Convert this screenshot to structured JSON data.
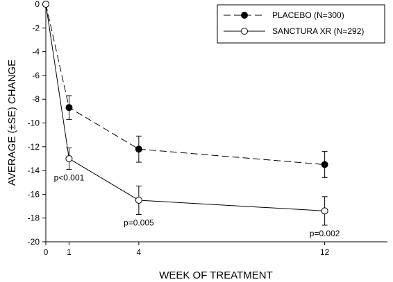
{
  "chart_data": {
    "type": "line",
    "title": "",
    "xlabel": "WEEK OF TREATMENT",
    "ylabel": "AVERAGE (±SE) CHANGE",
    "xlim": [
      0,
      14.7
    ],
    "ylim": [
      -20,
      0
    ],
    "x_ticks": [
      0,
      1,
      4,
      12
    ],
    "y_ticks": [
      0,
      -2,
      -4,
      -6,
      -8,
      -10,
      -12,
      -14,
      -16,
      -18,
      -20
    ],
    "legend_position": "top-right",
    "series": [
      {
        "name": "PLACEBO (N=300)",
        "marker": "filled-circle",
        "line_style": "dashed",
        "points": [
          {
            "x": 0,
            "y": 0,
            "se": 0
          },
          {
            "x": 1,
            "y": -8.7,
            "se": 1.0
          },
          {
            "x": 4,
            "y": -12.2,
            "se": 1.1
          },
          {
            "x": 12,
            "y": -13.5,
            "se": 1.1
          }
        ]
      },
      {
        "name": "SANCTURA XR (N=292)",
        "marker": "open-circle",
        "line_style": "solid",
        "points": [
          {
            "x": 0,
            "y": 0,
            "se": 0
          },
          {
            "x": 1,
            "y": -13.0,
            "se": 0.9
          },
          {
            "x": 4,
            "y": -16.5,
            "se": 1.2
          },
          {
            "x": 12,
            "y": -17.4,
            "se": 1.2
          }
        ]
      }
    ],
    "annotations": [
      {
        "text": "p<0.001",
        "x": 1
      },
      {
        "text": "p=0.005",
        "x": 4
      },
      {
        "text": "p=0.002",
        "x": 12
      }
    ]
  }
}
